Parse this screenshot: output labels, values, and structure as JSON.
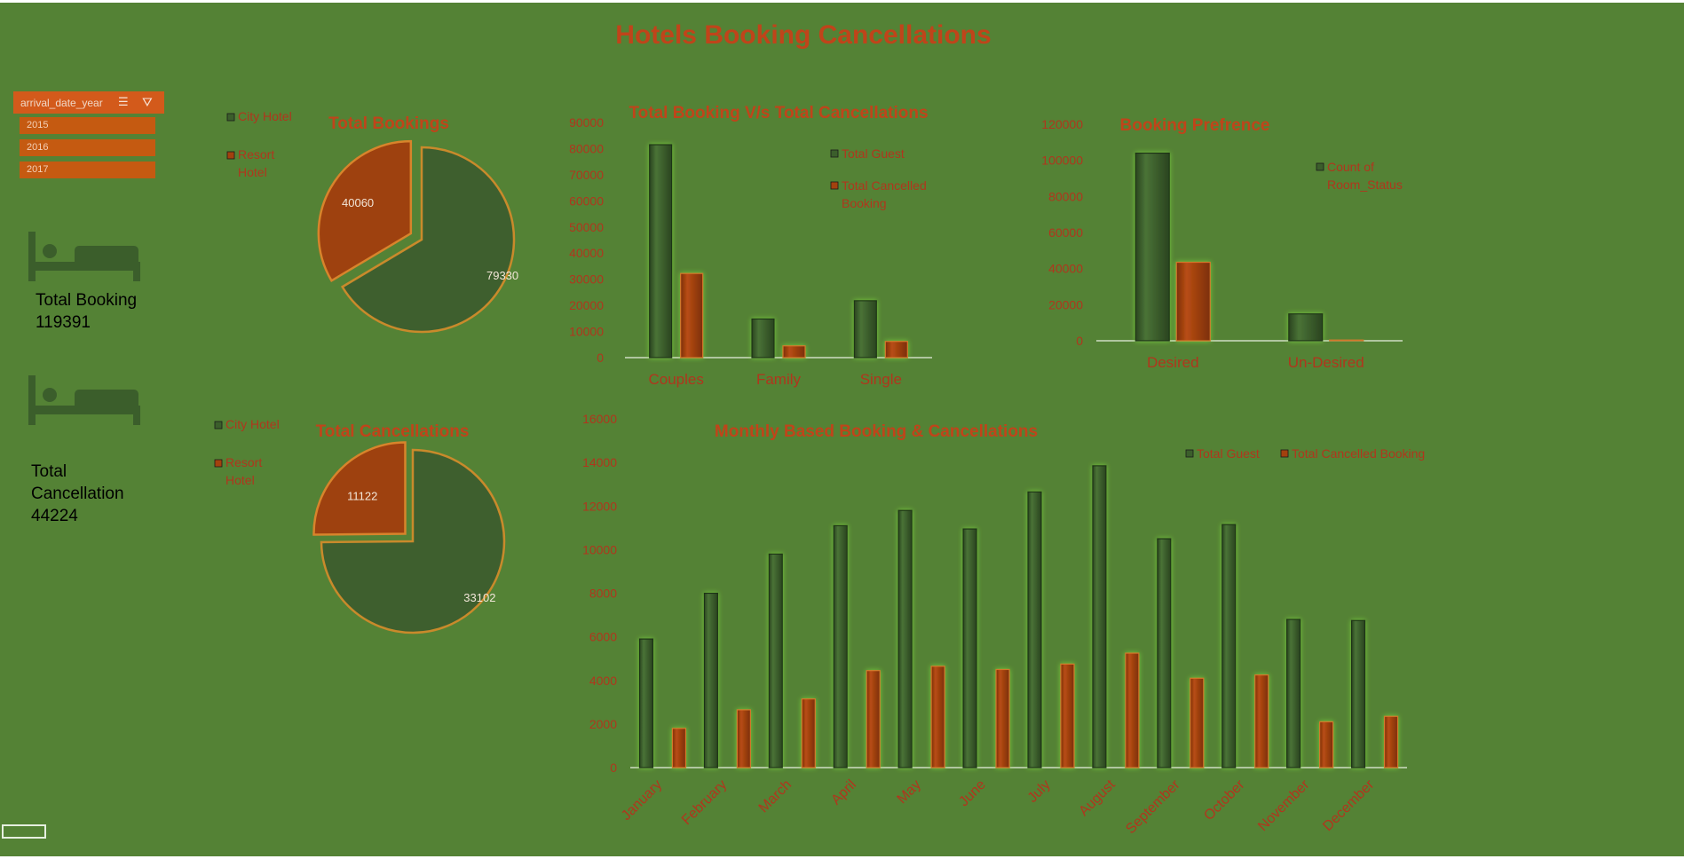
{
  "title": "Hotels Booking Cancellations",
  "slicer": {
    "field": "arrival_date_year",
    "items": [
      "2015",
      "2016",
      "2017"
    ],
    "icons": [
      "multi-select-icon",
      "clear-filter-icon"
    ]
  },
  "kpi": {
    "total_booking_label": "Total Booking",
    "total_booking_value": "119391",
    "total_cancellation_label_1": "Total",
    "total_cancellation_label_2": "Cancellation",
    "total_cancellation_value": "44224",
    "icon": "bed-icon"
  },
  "colors": {
    "background": "#548235",
    "green_series": "#3b5e2b",
    "orange_series": "#a3410e",
    "title": "#c0441a",
    "axis_text": "#b0361d"
  },
  "chart_data": [
    {
      "id": "total-bookings",
      "type": "pie",
      "title": "Total Bookings",
      "labels": [
        "City Hotel",
        "Resort Hotel"
      ],
      "values": [
        79330,
        40060
      ],
      "legend": "left"
    },
    {
      "id": "total-cancellations",
      "type": "pie",
      "title": "Total Cancellations",
      "labels": [
        "City Hotel",
        "Resort Hotel"
      ],
      "values": [
        33102,
        11122
      ],
      "legend": "left"
    },
    {
      "id": "booking-vs-cancellations",
      "type": "bar",
      "title": "Total Booking V/s Total Cancellations",
      "categories": [
        "Couples",
        "Family",
        "Single"
      ],
      "series": [
        {
          "name": "Total Guest",
          "values": [
            81500,
            14800,
            21800
          ]
        },
        {
          "name": "Total Cancelled Booking",
          "values": [
            32200,
            4500,
            6200
          ]
        }
      ],
      "ylim": [
        0,
        90000
      ],
      "yticks": [
        "0",
        "10000",
        "20000",
        "30000",
        "40000",
        "50000",
        "60000",
        "70000",
        "80000",
        "90000"
      ],
      "legend": "right"
    },
    {
      "id": "booking-preference",
      "type": "bar",
      "title": "Booking Prefrence",
      "categories": [
        "Desired",
        "Un-Desired"
      ],
      "series": [
        {
          "name": "Count of Room_Status",
          "values": [
            104000,
            14900
          ]
        },
        {
          "name": "",
          "values": [
            43500,
            400
          ]
        }
      ],
      "ylim": [
        0,
        120000
      ],
      "yticks": [
        "0",
        "20000",
        "40000",
        "60000",
        "80000",
        "100000",
        "120000"
      ],
      "legend": "right"
    },
    {
      "id": "monthly-booking",
      "type": "bar",
      "title": "Monthly Based Booking & Cancellations",
      "categories": [
        "January",
        "February",
        "March",
        "April",
        "May",
        "June",
        "July",
        "August",
        "September",
        "October",
        "November",
        "December"
      ],
      "series": [
        {
          "name": "Total Guest",
          "values": [
            5900,
            8000,
            9800,
            11100,
            11800,
            10950,
            12650,
            13850,
            10500,
            11150,
            6800,
            6750
          ]
        },
        {
          "name": "Total Cancelled Booking",
          "values": [
            1800,
            2650,
            3150,
            4450,
            4650,
            4500,
            4750,
            5250,
            4100,
            4250,
            2100,
            2350
          ]
        }
      ],
      "ylim": [
        0,
        16000
      ],
      "yticks": [
        "0",
        "2000",
        "4000",
        "6000",
        "8000",
        "10000",
        "12000",
        "14000",
        "16000"
      ],
      "legend": "top-right"
    }
  ]
}
